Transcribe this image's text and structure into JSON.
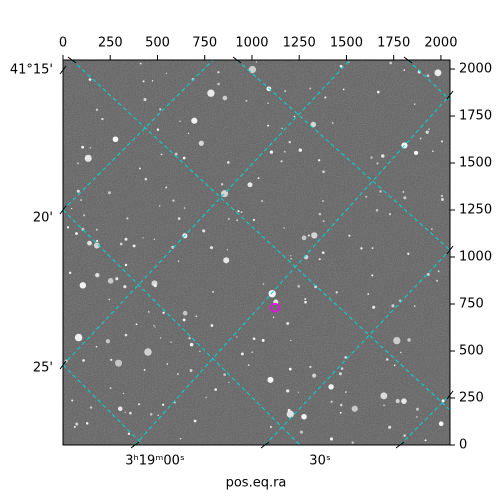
{
  "chart_data": {
    "type": "image",
    "xlabel": "pos.eq.ra",
    "xlim": [
      0,
      2048
    ],
    "ylim": [
      0,
      2048
    ],
    "xticks": [
      0,
      250,
      500,
      750,
      1000,
      1250,
      1500,
      1750,
      2000
    ],
    "yticks": [
      0,
      250,
      500,
      750,
      1000,
      1250,
      1500,
      1750,
      2000
    ],
    "wcs_labels": {
      "left": [
        "41°15'",
        "20'",
        "25'"
      ],
      "bottom": [
        "3ʰ19ᵐ00ˢ",
        "30ˢ"
      ]
    },
    "markers": [
      {
        "x": 1122,
        "y": 731,
        "color": "#ff00ff"
      }
    ]
  }
}
